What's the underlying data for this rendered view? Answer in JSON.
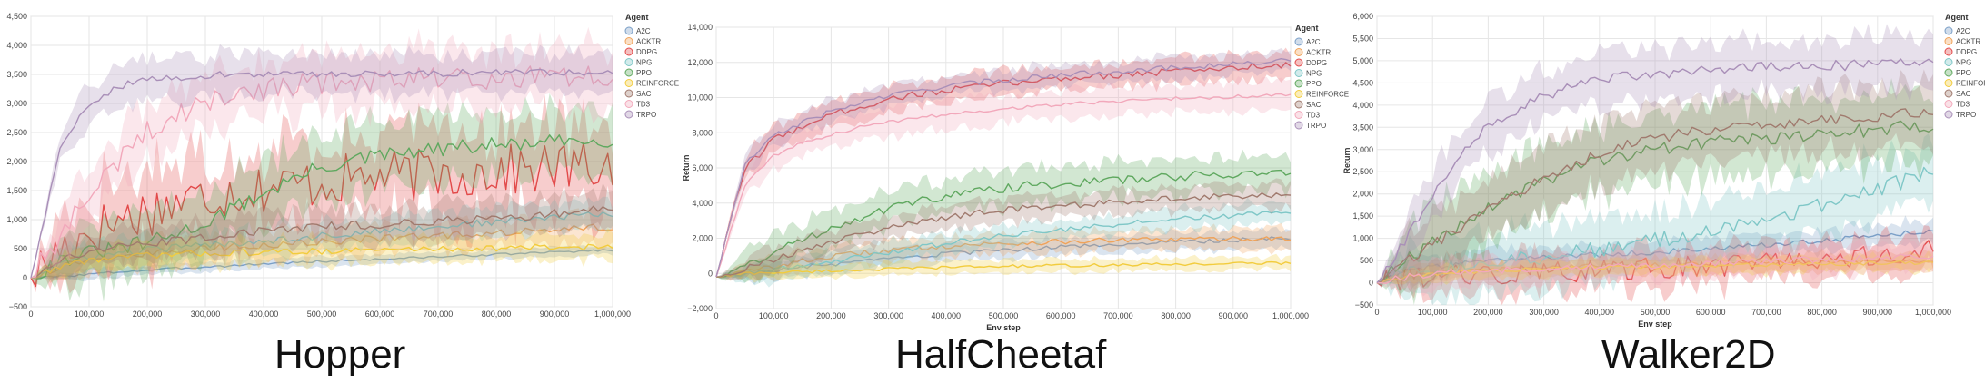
{
  "chart_data": [
    {
      "type": "line",
      "caption": "Hopper",
      "xlabel": "",
      "ylabel": "",
      "xlim": [
        0,
        1000000
      ],
      "ylim": [
        -500,
        4500
      ],
      "xticks": [
        0,
        100000,
        200000,
        300000,
        400000,
        500000,
        600000,
        700000,
        800000,
        900000,
        1000000
      ],
      "xtick_labels": [
        "0",
        "100,000",
        "200,000",
        "300,000",
        "400,000",
        "500,000",
        "600,000",
        "700,000",
        "800,000",
        "900,000",
        "1,000,000"
      ],
      "yticks": [
        -500,
        0,
        500,
        1000,
        1500,
        2000,
        2500,
        3000,
        3500,
        4000,
        4500
      ],
      "ytick_labels": [
        "−500",
        "0",
        "500",
        "1,000",
        "1,500",
        "2,000",
        "2,500",
        "3,000",
        "3,500",
        "4,000",
        "4,500"
      ],
      "grid": true,
      "legend_title": "Agent",
      "legend_position": "right",
      "x": [
        0,
        50000,
        100000,
        150000,
        200000,
        250000,
        300000,
        350000,
        400000,
        450000,
        500000,
        550000,
        600000,
        650000,
        700000,
        750000,
        800000,
        850000,
        900000,
        950000,
        1000000
      ],
      "series": [
        {
          "name": "A2C",
          "color": "#7b9fc7",
          "values": [
            0,
            20,
            60,
            100,
            130,
            160,
            190,
            210,
            240,
            260,
            280,
            300,
            320,
            340,
            360,
            380,
            400,
            420,
            440,
            460,
            480
          ],
          "band": 80
        },
        {
          "name": "ACKTR",
          "color": "#f0a35a",
          "values": [
            0,
            200,
            320,
            380,
            420,
            460,
            500,
            540,
            560,
            600,
            620,
            650,
            680,
            700,
            720,
            750,
            780,
            800,
            830,
            850,
            880
          ],
          "band": 250
        },
        {
          "name": "DDPG",
          "color": "#e24a4a",
          "values": [
            0,
            500,
            800,
            1000,
            1150,
            1300,
            1400,
            1500,
            1550,
            1600,
            1650,
            1700,
            1750,
            1750,
            1800,
            1800,
            1850,
            1850,
            1900,
            1900,
            1950
          ],
          "band": 700,
          "noise": 450
        },
        {
          "name": "NPG",
          "color": "#7fc7c7",
          "values": [
            0,
            250,
            350,
            420,
            480,
            520,
            560,
            600,
            640,
            680,
            720,
            760,
            800,
            840,
            880,
            920,
            960,
            1000,
            1040,
            1080,
            1100
          ],
          "band": 250
        },
        {
          "name": "PPO",
          "color": "#5fa85f",
          "values": [
            0,
            300,
            420,
            500,
            600,
            750,
            950,
            1200,
            1450,
            1700,
            1900,
            2000,
            2100,
            2150,
            2200,
            2250,
            2280,
            2300,
            2330,
            2350,
            2380
          ],
          "band": 550
        },
        {
          "name": "REINFORCE",
          "color": "#f2cc3d",
          "values": [
            0,
            200,
            300,
            350,
            380,
            400,
            420,
            430,
            440,
            450,
            460,
            470,
            480,
            490,
            500,
            500,
            510,
            520,
            520,
            530,
            540
          ],
          "band": 220
        },
        {
          "name": "SAC",
          "color": "#a07a6e",
          "values": [
            0,
            300,
            450,
            520,
            580,
            640,
            700,
            760,
            800,
            840,
            880,
            900,
            920,
            950,
            980,
            1000,
            1030,
            1060,
            1100,
            1150,
            1200
          ],
          "band": 300
        },
        {
          "name": "TD3",
          "color": "#f2a8bb",
          "values": [
            0,
            700,
            1400,
            2000,
            2500,
            2800,
            3000,
            3150,
            3250,
            3300,
            3350,
            3400,
            3400,
            3420,
            3430,
            3440,
            3450,
            3460,
            3470,
            3480,
            3500
          ],
          "band": 500,
          "noise": 200
        },
        {
          "name": "TRPO",
          "color": "#a98fb8",
          "values": [
            0,
            2200,
            3000,
            3300,
            3400,
            3450,
            3480,
            3500,
            3500,
            3500,
            3510,
            3510,
            3520,
            3520,
            3520,
            3530,
            3530,
            3530,
            3540,
            3540,
            3540
          ],
          "band": 350,
          "noise": 60
        }
      ]
    },
    {
      "type": "line",
      "caption": "HalfCheetaf",
      "xlabel": "Env step",
      "ylabel": "Return",
      "xlim": [
        0,
        1000000
      ],
      "ylim": [
        -2000,
        14000
      ],
      "xticks": [
        0,
        100000,
        200000,
        300000,
        400000,
        500000,
        600000,
        700000,
        800000,
        900000,
        1000000
      ],
      "xtick_labels": [
        "0",
        "100,000",
        "200,000",
        "300,000",
        "400,000",
        "500,000",
        "600,000",
        "700,000",
        "800,000",
        "900,000",
        "1,000,000"
      ],
      "yticks": [
        -2000,
        0,
        2000,
        4000,
        6000,
        8000,
        10000,
        12000,
        14000
      ],
      "ytick_labels": [
        "−2,000",
        "0",
        "2,000",
        "4,000",
        "6,000",
        "8,000",
        "10,000",
        "12,000",
        "14,000"
      ],
      "grid": true,
      "legend_title": "Agent",
      "legend_position": "right",
      "x": [
        0,
        50000,
        100000,
        150000,
        200000,
        250000,
        300000,
        350000,
        400000,
        450000,
        500000,
        550000,
        600000,
        650000,
        700000,
        750000,
        800000,
        850000,
        900000,
        950000,
        1000000
      ],
      "series": [
        {
          "name": "A2C",
          "color": "#7b9fc7",
          "values": [
            -200,
            0,
            150,
            350,
            500,
            650,
            800,
            950,
            1100,
            1200,
            1300,
            1400,
            1500,
            1580,
            1650,
            1720,
            1780,
            1840,
            1900,
            1950,
            2000
          ],
          "band": 500
        },
        {
          "name": "ACKTR",
          "color": "#f0a35a",
          "values": [
            -200,
            100,
            400,
            700,
            950,
            1150,
            1300,
            1450,
            1550,
            1650,
            1700,
            1750,
            1800,
            1850,
            1880,
            1900,
            1930,
            1950,
            1970,
            1990,
            2000
          ],
          "band": 600
        },
        {
          "name": "DDPG",
          "color": "#e24a4a",
          "values": [
            -200,
            6000,
            7600,
            8400,
            9000,
            9500,
            9900,
            10200,
            10400,
            10600,
            10800,
            10950,
            11100,
            11200,
            11300,
            11400,
            11500,
            11600,
            11700,
            11800,
            11900
          ],
          "band": 700,
          "noise": 200
        },
        {
          "name": "NPG",
          "color": "#7fc7c7",
          "values": [
            -200,
            0,
            200,
            450,
            700,
            950,
            1200,
            1450,
            1700,
            1950,
            2150,
            2350,
            2500,
            2650,
            2800,
            2950,
            3100,
            3200,
            3300,
            3400,
            3500
          ],
          "band": 600
        },
        {
          "name": "PPO",
          "color": "#5fa85f",
          "values": [
            -200,
            400,
            1200,
            1900,
            2600,
            3200,
            3700,
            4100,
            4400,
            4650,
            4850,
            5000,
            5100,
            5200,
            5300,
            5400,
            5500,
            5600,
            5650,
            5700,
            5800
          ],
          "band": 1000
        },
        {
          "name": "REINFORCE",
          "color": "#f2cc3d",
          "values": [
            -200,
            0,
            50,
            100,
            150,
            200,
            250,
            300,
            340,
            380,
            400,
            420,
            440,
            460,
            480,
            500,
            520,
            540,
            560,
            580,
            600
          ],
          "band": 350
        },
        {
          "name": "SAC",
          "color": "#a07a6e",
          "values": [
            -200,
            300,
            800,
            1300,
            1800,
            2200,
            2600,
            2950,
            3200,
            3400,
            3600,
            3750,
            3850,
            3950,
            4050,
            4150,
            4250,
            4350,
            4400,
            4450,
            4500
          ],
          "band": 700
        },
        {
          "name": "TD3",
          "color": "#f2a8bb",
          "values": [
            -200,
            5000,
            6700,
            7400,
            7900,
            8300,
            8600,
            8850,
            9050,
            9200,
            9350,
            9500,
            9600,
            9700,
            9800,
            9900,
            9950,
            10000,
            10050,
            10100,
            10200
          ],
          "band": 800,
          "noise": 100
        },
        {
          "name": "TRPO",
          "color": "#a98fb8",
          "values": [
            -200,
            6200,
            7800,
            8600,
            9200,
            9700,
            10100,
            10400,
            10650,
            10850,
            11000,
            11150,
            11300,
            11400,
            11500,
            11600,
            11700,
            11800,
            11900,
            12000,
            12100
          ],
          "band": 600,
          "noise": 150
        }
      ]
    },
    {
      "type": "line",
      "caption": "Walker2D",
      "xlabel": "Env step",
      "ylabel": "Return",
      "xlim": [
        0,
        1000000
      ],
      "ylim": [
        -500,
        6000
      ],
      "xticks": [
        0,
        100000,
        200000,
        300000,
        400000,
        500000,
        600000,
        700000,
        800000,
        900000,
        1000000
      ],
      "xtick_labels": [
        "0",
        "100,000",
        "200,000",
        "300,000",
        "400,000",
        "500,000",
        "600,000",
        "700,000",
        "800,000",
        "900,000",
        "1,000,000"
      ],
      "yticks": [
        -500,
        0,
        500,
        1000,
        1500,
        2000,
        2500,
        3000,
        3500,
        4000,
        4500,
        5000,
        5500,
        6000
      ],
      "ytick_labels": [
        "−500",
        "0",
        "500",
        "1,000",
        "1,500",
        "2,000",
        "2,500",
        "3,000",
        "3,500",
        "4,000",
        "4,500",
        "5,000",
        "5,500",
        "6,000"
      ],
      "grid": true,
      "legend_title": "Agent",
      "legend_position": "right",
      "x": [
        0,
        50000,
        100000,
        150000,
        200000,
        250000,
        300000,
        350000,
        400000,
        450000,
        500000,
        550000,
        600000,
        650000,
        700000,
        750000,
        800000,
        850000,
        900000,
        950000,
        1000000
      ],
      "series": [
        {
          "name": "A2C",
          "color": "#7b9fc7",
          "values": [
            0,
            250,
            350,
            420,
            480,
            520,
            560,
            600,
            630,
            660,
            690,
            720,
            760,
            800,
            850,
            900,
            950,
            1000,
            1060,
            1120,
            1200
          ],
          "band": 250
        },
        {
          "name": "ACKTR",
          "color": "#f0a35a",
          "values": [
            0,
            150,
            220,
            260,
            300,
            320,
            340,
            360,
            380,
            390,
            400,
            410,
            420,
            430,
            440,
            450,
            460,
            470,
            480,
            490,
            500
          ],
          "band": 200
        },
        {
          "name": "DDPG",
          "color": "#e24a4a",
          "values": [
            0,
            100,
            150,
            180,
            200,
            220,
            240,
            260,
            280,
            300,
            320,
            350,
            380,
            420,
            460,
            500,
            550,
            600,
            650,
            700,
            800
          ],
          "band": 400,
          "noise": 250
        },
        {
          "name": "NPG",
          "color": "#7fc7c7",
          "values": [
            0,
            200,
            300,
            380,
            450,
            520,
            600,
            680,
            760,
            850,
            950,
            1050,
            1150,
            1300,
            1450,
            1600,
            1750,
            1900,
            2100,
            2300,
            2500
          ],
          "band": 700
        },
        {
          "name": "PPO",
          "color": "#5fa85f",
          "values": [
            0,
            500,
            900,
            1300,
            1700,
            2000,
            2300,
            2550,
            2750,
            2900,
            3000,
            3100,
            3150,
            3200,
            3250,
            3300,
            3350,
            3400,
            3450,
            3500,
            3500
          ],
          "band": 800,
          "noise": 150
        },
        {
          "name": "REINFORCE",
          "color": "#f2cc3d",
          "values": [
            0,
            120,
            200,
            240,
            270,
            290,
            310,
            330,
            340,
            350,
            360,
            370,
            380,
            390,
            400,
            410,
            420,
            430,
            440,
            450,
            460
          ],
          "band": 180
        },
        {
          "name": "SAC",
          "color": "#a07a6e",
          "values": [
            0,
            450,
            850,
            1250,
            1650,
            2000,
            2350,
            2650,
            2900,
            3100,
            3250,
            3350,
            3450,
            3500,
            3550,
            3600,
            3650,
            3700,
            3750,
            3800,
            3800
          ],
          "band": 700,
          "noise": 120
        },
        {
          "name": "TD3",
          "color": "#f2a8bb",
          "values": [
            0,
            120,
            200,
            250,
            280,
            300,
            320,
            340,
            360,
            380,
            400,
            420,
            440,
            460,
            480,
            500,
            520,
            540,
            560,
            580,
            600
          ],
          "band": 300
        },
        {
          "name": "TRPO",
          "color": "#a98fb8",
          "values": [
            0,
            900,
            2000,
            2900,
            3500,
            3900,
            4200,
            4400,
            4550,
            4650,
            4700,
            4750,
            4800,
            4820,
            4850,
            4870,
            4890,
            4900,
            4920,
            4940,
            4960
          ],
          "band": 600,
          "noise": 120
        }
      ]
    }
  ]
}
